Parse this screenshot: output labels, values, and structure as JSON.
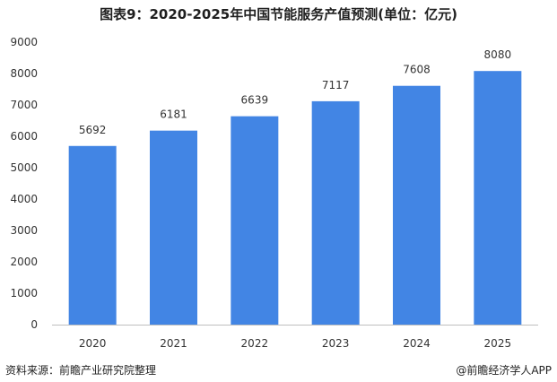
{
  "title": "图表9：2020-2025年中国节能服务产值预测(单位：亿元)",
  "source": "资料来源：前瞻产业研究院整理",
  "credit": "@前瞻经济学人APP",
  "colors": {
    "bar": "#4285e4",
    "axis": "#bfbfbf"
  },
  "chart_data": {
    "type": "bar",
    "categories": [
      "2020",
      "2021",
      "2022",
      "2023",
      "2024",
      "2025"
    ],
    "values": [
      5692,
      6181,
      6639,
      7117,
      7608,
      8080
    ],
    "data_labels": [
      "5692",
      "6181",
      "6639",
      "7117",
      "7608",
      "8080"
    ],
    "ylim": [
      0,
      9000
    ],
    "yticks": [
      0,
      1000,
      2000,
      3000,
      4000,
      5000,
      6000,
      7000,
      8000,
      9000
    ],
    "ytick_labels": [
      "0",
      "1000",
      "2000",
      "3000",
      "4000",
      "5000",
      "6000",
      "7000",
      "8000",
      "9000"
    ],
    "grid": false,
    "legend": "none"
  }
}
